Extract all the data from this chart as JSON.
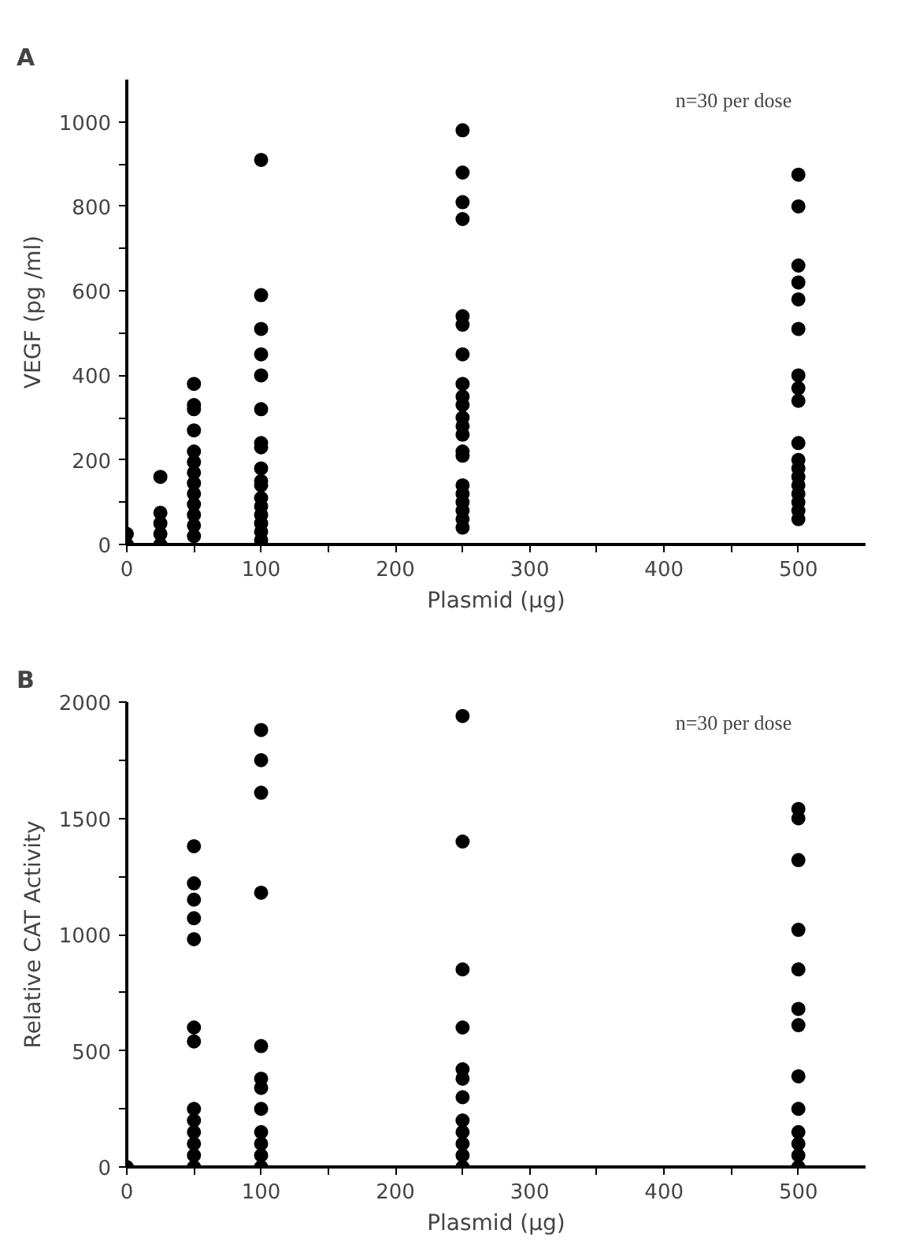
{
  "chart_data": [
    {
      "type": "scatter",
      "title": "A",
      "xlabel": "Plasmid (µg)",
      "ylabel": "VEGF (pg /ml)",
      "annotations": [
        "n=30 per dose"
      ],
      "marker": "circle",
      "grid": false,
      "x": [
        0,
        0,
        25,
        25,
        25,
        25,
        25,
        50,
        50,
        50,
        50,
        50,
        50,
        50,
        50,
        50,
        50,
        50,
        50,
        50,
        100,
        100,
        100,
        100,
        100,
        100,
        100,
        100,
        100,
        100,
        100,
        100,
        100,
        100,
        100,
        100,
        100,
        250,
        250,
        250,
        250,
        250,
        250,
        250,
        250,
        250,
        250,
        250,
        250,
        250,
        250,
        250,
        250,
        250,
        250,
        250,
        250,
        250,
        500,
        500,
        500,
        500,
        500,
        500,
        500,
        500,
        500,
        500,
        500,
        500,
        500,
        500,
        500,
        500,
        500,
        500
      ],
      "series": [
        {
          "color": "#000000",
          "values": [
            0,
            25,
            0,
            25,
            50,
            75,
            160,
            20,
            45,
            70,
            95,
            120,
            145,
            170,
            195,
            220,
            270,
            320,
            330,
            380,
            10,
            30,
            50,
            70,
            90,
            110,
            140,
            150,
            180,
            230,
            240,
            320,
            400,
            450,
            510,
            590,
            910,
            40,
            60,
            80,
            100,
            120,
            140,
            210,
            220,
            260,
            280,
            300,
            330,
            350,
            380,
            450,
            520,
            540,
            770,
            810,
            880,
            980,
            60,
            80,
            100,
            120,
            140,
            160,
            180,
            200,
            240,
            340,
            370,
            400,
            510,
            580,
            620,
            660,
            800,
            875
          ]
        }
      ],
      "xlim": [
        0,
        550
      ],
      "ylim": [
        0,
        1100
      ],
      "xticks": [
        0,
        {
          "value": 50,
          "label": null
        },
        100,
        {
          "value": 150,
          "label": null
        },
        200,
        {
          "value": 250,
          "label": null
        },
        300,
        {
          "value": 350,
          "label": null
        },
        400,
        {
          "value": 450,
          "label": null
        },
        500
      ],
      "yticks": [
        0,
        {
          "value": 100,
          "label": null
        },
        200,
        {
          "value": 300,
          "label": null
        },
        400,
        {
          "value": 500,
          "label": null
        },
        600,
        {
          "value": 700,
          "label": null
        },
        800,
        {
          "value": 900,
          "label": null
        },
        1000
      ]
    },
    {
      "type": "scatter",
      "title": "B",
      "xlabel": "Plasmid (µg)",
      "ylabel": "Relative CAT Activity",
      "annotations": [
        "n=30 per dose"
      ],
      "marker": "circle",
      "grid": false,
      "x": [
        0,
        50,
        50,
        50,
        50,
        50,
        50,
        50,
        50,
        50,
        50,
        50,
        50,
        50,
        100,
        100,
        100,
        100,
        100,
        100,
        100,
        100,
        100,
        100,
        100,
        100,
        250,
        250,
        250,
        250,
        250,
        250,
        250,
        250,
        250,
        250,
        250,
        250,
        500,
        500,
        500,
        500,
        500,
        500,
        500,
        500,
        500,
        500,
        500,
        500,
        500
      ],
      "series": [
        {
          "color": "#000000",
          "values": [
            0,
            0,
            50,
            100,
            150,
            200,
            250,
            540,
            600,
            980,
            1070,
            1150,
            1220,
            1380,
            0,
            50,
            100,
            150,
            250,
            340,
            380,
            520,
            1180,
            1610,
            1750,
            1880,
            0,
            50,
            100,
            150,
            200,
            300,
            380,
            420,
            600,
            850,
            1400,
            1940,
            0,
            50,
            100,
            150,
            250,
            390,
            610,
            680,
            850,
            1020,
            1320,
            1500,
            1540
          ]
        }
      ],
      "xlim": [
        0,
        550
      ],
      "ylim": [
        0,
        2000
      ],
      "xticks": [
        0,
        {
          "value": 50,
          "label": null
        },
        100,
        {
          "value": 150,
          "label": null
        },
        200,
        {
          "value": 250,
          "label": null
        },
        300,
        {
          "value": 350,
          "label": null
        },
        400,
        {
          "value": 450,
          "label": null
        },
        500
      ],
      "yticks": [
        0,
        {
          "value": 250,
          "label": null
        },
        500,
        {
          "value": 750,
          "label": null
        },
        1000,
        {
          "value": 1250,
          "label": null
        },
        1500,
        {
          "value": 1750,
          "label": null
        },
        2000
      ]
    }
  ]
}
